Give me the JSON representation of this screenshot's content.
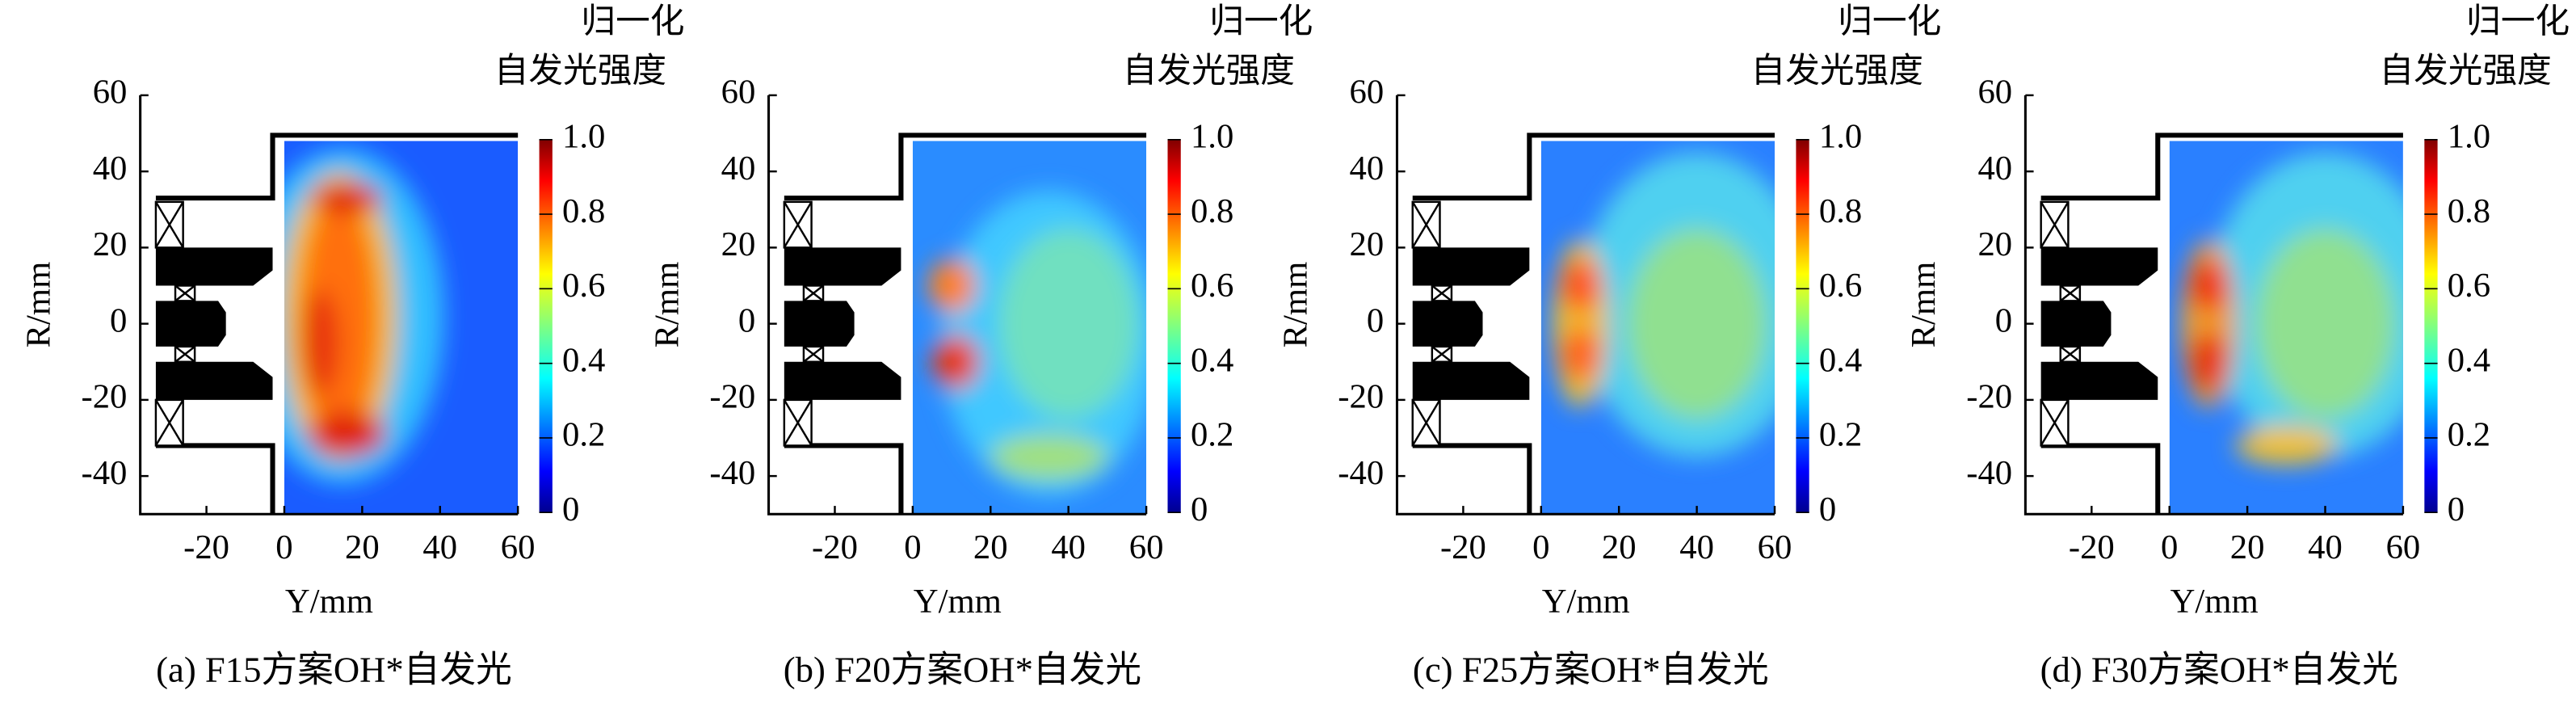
{
  "chart_data": [
    {
      "type": "heatmap",
      "title": "(a) F15方案OH*自发光",
      "xlabel": "Y/mm",
      "ylabel": "R/mm",
      "colorbar_label": [
        "归一化",
        "自发光强度"
      ],
      "xlim": [
        -37,
        60
      ],
      "ylim": [
        -50,
        60
      ],
      "xticks": [
        -20,
        0,
        20,
        40,
        60
      ],
      "yticks": [
        -40,
        -20,
        0,
        20,
        40,
        60
      ],
      "clim": [
        0,
        1
      ],
      "cticks": [
        0,
        0.2,
        0.4,
        0.6,
        0.8,
        {
          "value": 1,
          "label": "1.0"
        }
      ]
    },
    {
      "type": "heatmap",
      "title": "(b) F20方案OH*自发光",
      "xlabel": "Y/mm",
      "ylabel": "R/mm",
      "colorbar_label": [
        "归一化",
        "自发光强度"
      ],
      "xlim": [
        -37,
        60
      ],
      "ylim": [
        -50,
        60
      ],
      "xticks": [
        -20,
        0,
        20,
        40,
        60
      ],
      "yticks": [
        -40,
        -20,
        0,
        20,
        40,
        60
      ],
      "clim": [
        0,
        1
      ],
      "cticks": [
        0,
        0.2,
        0.4,
        0.6,
        0.8,
        {
          "value": 1,
          "label": "1.0"
        }
      ]
    },
    {
      "type": "heatmap",
      "title": "(c) F25方案OH*自发光",
      "xlabel": "Y/mm",
      "ylabel": "R/mm",
      "colorbar_label": [
        "归一化",
        "自发光强度"
      ],
      "xlim": [
        -37,
        60
      ],
      "ylim": [
        -50,
        60
      ],
      "xticks": [
        -20,
        0,
        20,
        40,
        60
      ],
      "yticks": [
        -40,
        -20,
        0,
        20,
        40,
        60
      ],
      "clim": [
        0,
        1
      ],
      "cticks": [
        0,
        0.2,
        0.4,
        0.6,
        0.8,
        {
          "value": 1,
          "label": "1.0"
        }
      ]
    },
    {
      "type": "heatmap",
      "title": "(d) F30方案OH*自发光",
      "xlabel": "Y/mm",
      "ylabel": "R/mm",
      "colorbar_label": [
        "归一化",
        "自发光强度"
      ],
      "xlim": [
        -37,
        60
      ],
      "ylim": [
        -50,
        60
      ],
      "xticks": [
        -20,
        0,
        20,
        40,
        60
      ],
      "yticks": [
        -40,
        -20,
        0,
        20,
        40,
        60
      ],
      "clim": [
        0,
        1
      ],
      "cticks": [
        0,
        0.2,
        0.4,
        0.6,
        0.8,
        {
          "value": 1,
          "label": "1.0"
        }
      ]
    }
  ]
}
